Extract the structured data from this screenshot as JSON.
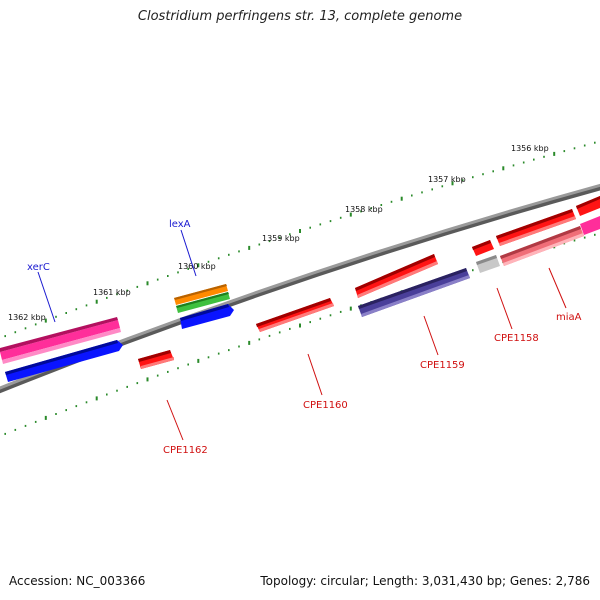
{
  "title": "Clostridium perfringens str. 13, complete genome",
  "footer": {
    "accession": "Accession: NC_003366",
    "summary": "Topology: circular; Length: 3,031,430 bp; Genes: 2,786"
  },
  "colors": {
    "backbone": "#7a7a7a",
    "ticks": "#2a8a2a",
    "red_gene": "#ff1414",
    "pink_gene": "#ff2e9a",
    "blue_gene": "#0a14ff",
    "purple_gene": "#4a3f9a",
    "orange_gene": "#ff8a00",
    "green_gene": "#3fc03f",
    "gray_gene": "#c8c8c8",
    "salmon_gene": "#f06e78",
    "blue_label": "#1a1ad0",
    "red_label": "#d01010"
  },
  "scale_labels": [
    "1356 kbp",
    "1357 kbp",
    "1358 kbp",
    "1359 kbp",
    "1360 kbp",
    "1361 kbp",
    "1362 kbp"
  ],
  "gene_labels": [
    {
      "text": "xerC",
      "color": "blue"
    },
    {
      "text": "lexA",
      "color": "blue"
    },
    {
      "text": "CPE1162",
      "color": "red"
    },
    {
      "text": "CPE1160",
      "color": "red"
    },
    {
      "text": "CPE1159",
      "color": "red"
    },
    {
      "text": "CPE1158",
      "color": "red"
    },
    {
      "text": "miaA",
      "color": "red"
    }
  ]
}
